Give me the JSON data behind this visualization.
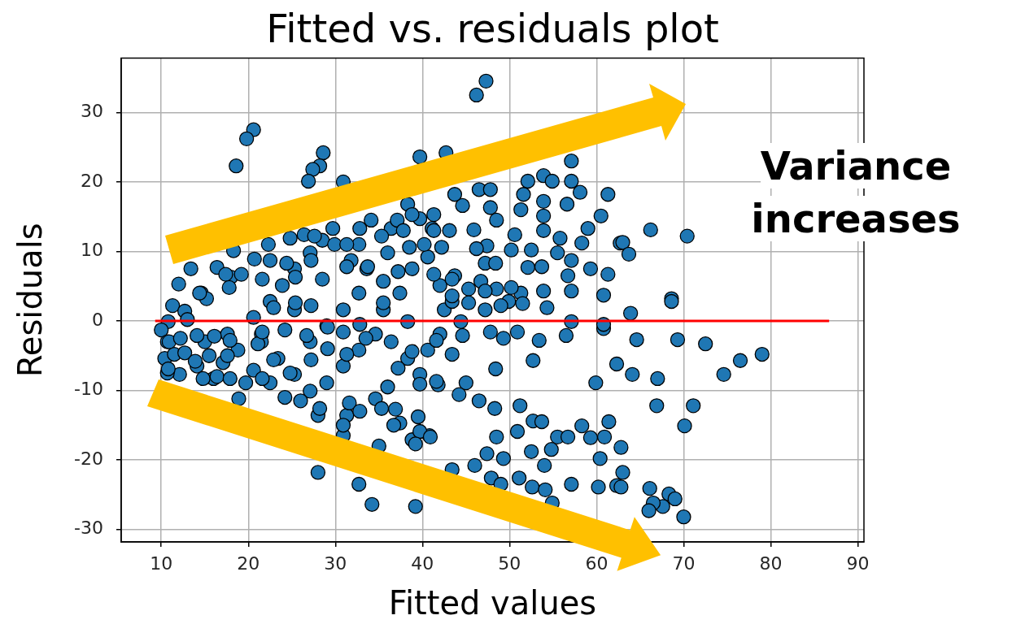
{
  "chart_data": {
    "type": "scatter",
    "title": "Fitted vs. residuals plot",
    "xlabel": "Fitted values",
    "ylabel": "Residuals",
    "xlim": [
      5.4,
      90.7
    ],
    "ylim": [
      -31.8,
      37.8
    ],
    "xticks": [
      10,
      20,
      30,
      40,
      50,
      60,
      70,
      80,
      90
    ],
    "yticks": [
      -30,
      -20,
      -10,
      0,
      10,
      20,
      30
    ],
    "grid": true,
    "marker": "circle",
    "annotations": [
      "Variance increases"
    ],
    "series": [
      {
        "color": "#1f77b4",
        "x": [
          47.3,
          46.2,
          20.6,
          19.8,
          18.6,
          28.6,
          28.2,
          27.4,
          26.9,
          30.9,
          39.7,
          42.7,
          57.1,
          61.3,
          58.1,
          56.6,
          60.5,
          52.1,
          53.9,
          54.9,
          57.1,
          53.9,
          51.3,
          51.6,
          53.9,
          59.0,
          58.3,
          62.7,
          53.9,
          55.8,
          47.8,
          48.5,
          50.6,
          45.9,
          44.6,
          43.7,
          46.5,
          47.8,
          47.4,
          47.2,
          48.4,
          52.1,
          53.7,
          56.7,
          59.3,
          61.3,
          57.1,
          55.5,
          43.7,
          50.2,
          52.5,
          40.6,
          66.2,
          70.4,
          63.0,
          63.7,
          68.6,
          13.4,
          16.4,
          18.0,
          12.0,
          14.6,
          15.2,
          11.3,
          12.7,
          10.8,
          10.0,
          10.7,
          10.4,
          11.5,
          12.1,
          10.7,
          14.1,
          16.0,
          17.1,
          18.8,
          17.6,
          15.0,
          19.7,
          18.9,
          20.6,
          21.5,
          22.5,
          23.9,
          25.3,
          27.1,
          28.5,
          29.9,
          31.8,
          33.6,
          35.5,
          37.4,
          38.8,
          40.2,
          41.1,
          36.4,
          34.1,
          32.7,
          21.5,
          23.4,
          25.3,
          27.1,
          29.0,
          30.9,
          32.7,
          34.6,
          36.4,
          38.3,
          39.7,
          40.6,
          42.0,
          42.5,
          42.0,
          30.9,
          29.0,
          27.1,
          25.3,
          32.7,
          35.5,
          38.3,
          22.5,
          20.6,
          28.0,
          31.3,
          30.9,
          28.0,
          32.7,
          34.2,
          39.2,
          35.0,
          38.8,
          40.8,
          34.6,
          37.4,
          26.4,
          38.3,
          39.7,
          18.3,
          22.3,
          24.8,
          35.5,
          44.6,
          47.8,
          53.4,
          56.5,
          60.8,
          43.4,
          48.4,
          52.7,
          62.3,
          59.9,
          41.8,
          45.0,
          44.2,
          46.5,
          48.3,
          51.2,
          52.7,
          53.7,
          39.5,
          39.7,
          39.2,
          36.7,
          40.9,
          48.5,
          50.9,
          52.5,
          55.5,
          56.7,
          58.3,
          59.3,
          61.4,
          60.9,
          54.8,
          60.4,
          54.0,
          47.4,
          49.3,
          46.0,
          43.4,
          47.9,
          49.0,
          51.1,
          52.6,
          54.1,
          54.9,
          57.1,
          60.2,
          62.3,
          41.6,
          63.9,
          68.6,
          64.6,
          69.3,
          72.5,
          74.6,
          76.5,
          79.0,
          64.1,
          67.0,
          66.9,
          71.1,
          70.1,
          62.8,
          63.0,
          62.8,
          66.1,
          68.3,
          69.0,
          67.6,
          66.5,
          66.0,
          70.0,
          43.4,
          45.3,
          46.7,
          48.5,
          49.9,
          51.3,
          47.2,
          44.4,
          46.2,
          10.9,
          12.2,
          14.1,
          16.1,
          17.9,
          12.7,
          13.9,
          15.5,
          17.6,
          10.8,
          14.8,
          16.4,
          17.9,
          13.0,
          21.1,
          22.9,
          24.8,
          27.2,
          29.1,
          31.3,
          33.5,
          31.6,
          30.9,
          32.8,
          28.2,
          26.0,
          24.2,
          21.6,
          25.4,
          27.2,
          22.9,
          21.6,
          24.2,
          26.7,
          29.1,
          30.9,
          32.8,
          27.6,
          29.7,
          31.3,
          32.8,
          22.5,
          20.7,
          24.4,
          27.2,
          31.3,
          33.7,
          28.5,
          25.4,
          21.6,
          19.2,
          17.4,
          14.4,
          17.8,
          35.3,
          37.1,
          38.8,
          41.3,
          37.8,
          41.3,
          43.1,
          36.0,
          38.5,
          42.2,
          37.2,
          41.3,
          43.4,
          47.2,
          50.2,
          53.9,
          57.1,
          60.8,
          43.4,
          45.3,
          49.0,
          51.5,
          54.3,
          57.1,
          60.8,
          49.3,
          50.9,
          41.6,
          38.8,
          37.2,
          39.7,
          36.0,
          35.3,
          36.9
        ],
        "values": [
          34.5,
          32.5,
          27.5,
          26.2,
          22.3,
          24.2,
          22.3,
          21.8,
          20.1,
          20.0,
          23.6,
          24.2,
          23.0,
          18.2,
          18.5,
          16.8,
          15.1,
          20.1,
          20.9,
          20.1,
          20.1,
          17.2,
          16.0,
          18.2,
          15.1,
          13.3,
          11.2,
          11.2,
          13.0,
          11.9,
          16.3,
          14.5,
          12.4,
          13.1,
          16.6,
          18.2,
          18.9,
          18.9,
          10.8,
          8.3,
          8.3,
          7.7,
          7.8,
          6.5,
          7.5,
          6.7,
          8.7,
          9.8,
          6.5,
          10.2,
          10.2,
          9.2,
          13.1,
          12.2,
          11.3,
          9.6,
          3.2,
          7.5,
          7.7,
          6.3,
          5.3,
          4.0,
          3.2,
          2.2,
          1.4,
          -0.1,
          -1.3,
          -3.0,
          -5.4,
          -4.8,
          -7.7,
          -7.5,
          -6.5,
          -8.3,
          -6.0,
          -4.2,
          -1.9,
          -3.0,
          -8.9,
          -11.2,
          0.5,
          -1.9,
          2.8,
          5.1,
          7.5,
          9.8,
          11.6,
          11.0,
          8.7,
          7.5,
          5.7,
          4.0,
          7.5,
          11.0,
          13.3,
          13.3,
          14.5,
          11.0,
          -3.0,
          -5.4,
          -7.7,
          -10.1,
          -8.9,
          -6.5,
          -4.2,
          -1.9,
          -3.0,
          -5.4,
          -7.7,
          -4.2,
          -1.9,
          1.6,
          5.1,
          1.6,
          -0.7,
          -3.0,
          1.6,
          4.0,
          1.6,
          -0.1,
          -8.9,
          -7.1,
          -13.6,
          -13.6,
          -16.5,
          -21.8,
          -23.5,
          -26.4,
          -26.7,
          -18.0,
          -17.1,
          -16.5,
          -11.2,
          -14.7,
          12.4,
          16.8,
          14.7,
          10.1,
          11.0,
          11.9,
          2.6,
          -2.1,
          -1.6,
          -2.8,
          -2.1,
          -1.1,
          -4.8,
          -6.9,
          -5.7,
          -6.2,
          -8.9,
          -9.2,
          -8.9,
          -10.6,
          -11.5,
          -12.6,
          -12.2,
          -14.4,
          -14.5,
          -13.8,
          -15.9,
          -17.7,
          -15.0,
          -16.7,
          -16.7,
          -15.9,
          -18.8,
          -16.7,
          -16.7,
          -15.1,
          -16.8,
          -14.5,
          -16.7,
          -18.5,
          -19.8,
          -20.8,
          -19.1,
          -19.8,
          -20.8,
          -21.4,
          -22.6,
          -23.5,
          -22.6,
          -23.9,
          -24.3,
          -26.2,
          -23.5,
          -23.9,
          -23.7,
          -8.7,
          1.1,
          2.8,
          -2.7,
          -2.7,
          -3.3,
          -7.7,
          -5.7,
          -4.8,
          -7.7,
          -8.3,
          -12.2,
          -12.2,
          -15.1,
          -18.2,
          -21.8,
          -23.9,
          -24.1,
          -24.9,
          -25.6,
          -26.7,
          -26.2,
          -27.3,
          -28.2,
          2.8,
          4.6,
          5.7,
          4.6,
          2.8,
          4.0,
          1.6,
          -0.1,
          10.4,
          -3.0,
          -2.5,
          -2.1,
          -2.2,
          -2.8,
          -4.6,
          -5.8,
          -5.0,
          -5.0,
          -6.9,
          -8.3,
          -8.0,
          -8.3,
          0.2,
          -3.3,
          -5.6,
          -7.5,
          -5.6,
          -4.0,
          -4.8,
          -2.5,
          -11.8,
          -15.0,
          -13.0,
          -12.6,
          -11.5,
          -11.0,
          -8.3,
          2.6,
          2.2,
          1.9,
          -1.6,
          -1.3,
          -2.1,
          -0.9,
          -1.6,
          -0.5,
          12.2,
          13.3,
          11.0,
          13.3,
          8.7,
          8.9,
          8.3,
          8.7,
          7.8,
          7.8,
          6.0,
          6.3,
          6.0,
          6.7,
          6.7,
          4.0,
          4.8,
          12.2,
          14.5,
          15.3,
          15.3,
          13.0,
          13.0,
          13.0,
          9.8,
          10.6,
          10.6,
          7.1,
          6.7,
          6.0,
          4.3,
          4.8,
          4.3,
          4.3,
          3.7,
          3.6,
          2.6,
          2.2,
          2.5,
          1.9,
          -0.1,
          -0.5,
          -2.5,
          -1.6,
          -2.8,
          -4.4,
          -6.8,
          -9.1,
          -9.5,
          -12.6,
          -12.7
        ]
      },
      {
        "type": "line",
        "color": "#ff0000",
        "marker": "none",
        "x": [
          9.3,
          86.7
        ],
        "values": [
          0,
          0
        ]
      }
    ]
  }
}
